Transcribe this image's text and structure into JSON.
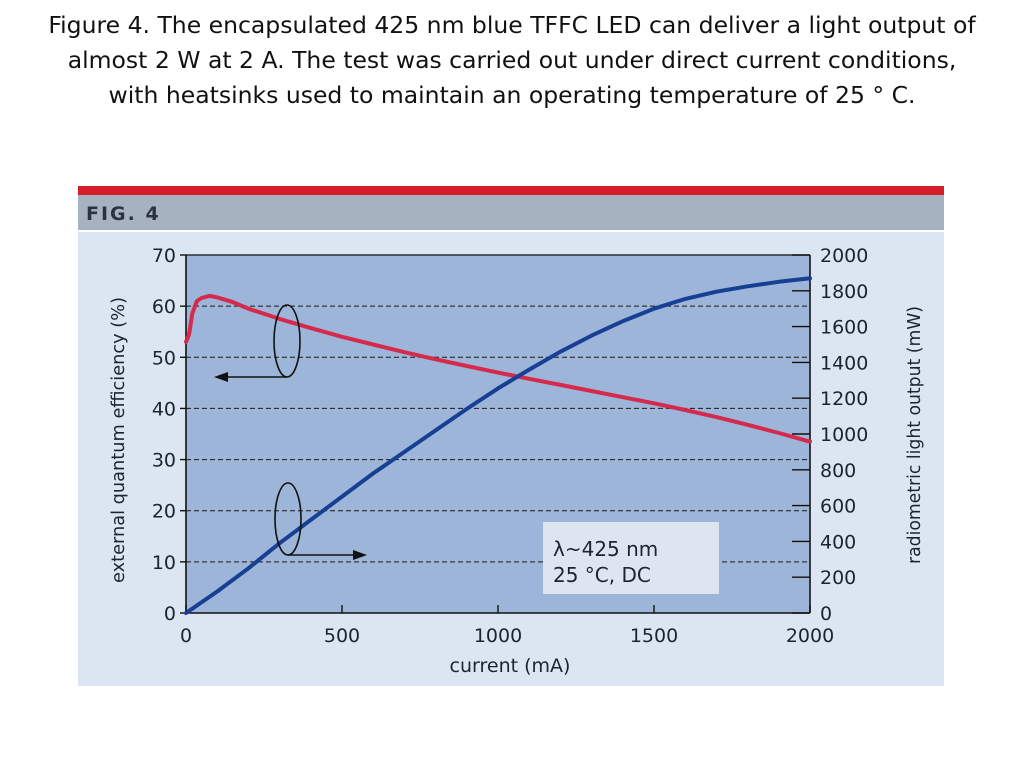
{
  "caption": "Figure 4. The encapsulated 425 nm blue TFFC LED can deliver a light output of almost 2 W at 2 A. The test was carried out under direct current conditions, with heatsinks used to maintain an operating temperature of 25 ° C.",
  "fig_label": "FIG. 4",
  "colors": {
    "header_red": "#d41f2a",
    "header_gray": "#a7b2c1",
    "panel_bg": "#dbe6f2",
    "plot_bg": "#9db5d8",
    "eqe_line": "#d62a4c",
    "power_line": "#173f94",
    "legend_bg": "#dde6f0"
  },
  "chart_data": {
    "type": "line",
    "xlabel": "current (mA)",
    "ylabel_left": "external quantum efficiency (%)",
    "ylabel_right": "radiometric light output (mW)",
    "xlim": [
      0,
      2000
    ],
    "ylim_left": [
      0,
      70
    ],
    "ylim_right": [
      0,
      2000
    ],
    "x_ticks": [
      "0",
      "500",
      "1000",
      "1500",
      "2000"
    ],
    "y_ticks_left": [
      "0",
      "10",
      "20",
      "30",
      "40",
      "50",
      "60",
      "70"
    ],
    "y_ticks_right": [
      "0",
      "200",
      "400",
      "600",
      "800",
      "1000",
      "1200",
      "1400",
      "1600",
      "1800",
      "2000"
    ],
    "grid": "dashed horizontal at left-axis ticks",
    "annotation": {
      "lines": [
        "λ~425 nm",
        "25 °C, DC"
      ],
      "placement": "bottom-right"
    },
    "series": [
      {
        "axis": "left",
        "x": [
          0,
          10,
          20,
          35,
          50,
          75,
          100,
          150,
          200,
          300,
          400,
          500,
          600,
          700,
          800,
          900,
          1000,
          1100,
          1200,
          1300,
          1400,
          1500,
          1600,
          1700,
          1800,
          1900,
          2000
        ],
        "values": [
          53,
          54.5,
          58.5,
          61,
          61.6,
          62,
          61.7,
          60.8,
          59.5,
          57.5,
          55.7,
          54,
          52.5,
          51,
          49.6,
          48.3,
          47,
          45.8,
          44.6,
          43.4,
          42.2,
          41,
          39.7,
          38.3,
          36.8,
          35.2,
          33.5
        ]
      },
      {
        "axis": "right",
        "x": [
          0,
          100,
          200,
          300,
          400,
          500,
          600,
          700,
          800,
          900,
          1000,
          1100,
          1200,
          1300,
          1400,
          1500,
          1600,
          1700,
          1800,
          1900,
          2000
        ],
        "values": [
          0,
          120,
          250,
          390,
          520,
          650,
          780,
          900,
          1020,
          1140,
          1255,
          1360,
          1460,
          1550,
          1630,
          1700,
          1755,
          1795,
          1825,
          1850,
          1870
        ]
      }
    ]
  }
}
